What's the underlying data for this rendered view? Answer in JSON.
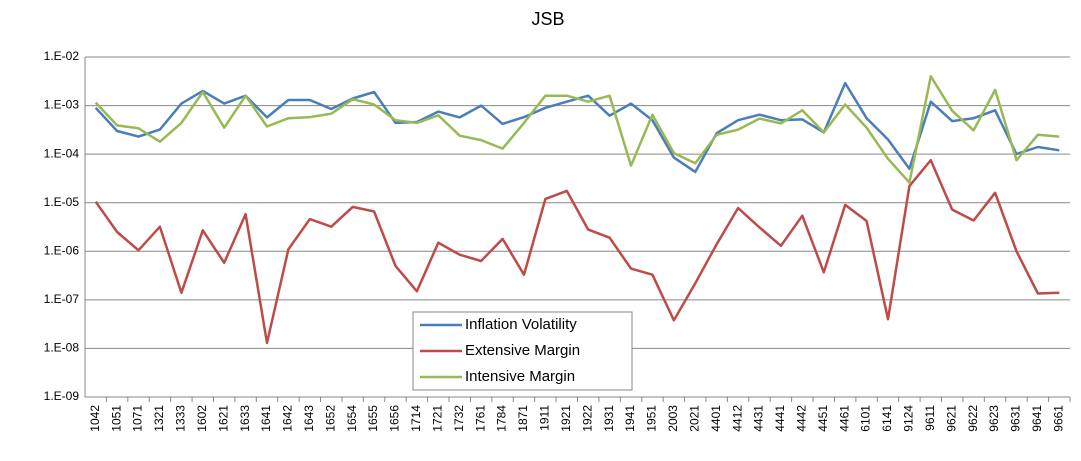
{
  "chart_data": {
    "type": "line",
    "title": "JSB",
    "log_scale": true,
    "grid": true,
    "categories": [
      "1042",
      "1051",
      "1071",
      "1321",
      "1333",
      "1602",
      "1621",
      "1633",
      "1641",
      "1642",
      "1643",
      "1652",
      "1654",
      "1655",
      "1656",
      "1714",
      "1721",
      "1732",
      "1761",
      "1784",
      "1871",
      "1911",
      "1921",
      "1922",
      "1931",
      "1941",
      "1951",
      "2003",
      "2021",
      "4401",
      "4412",
      "4431",
      "4441",
      "4442",
      "4451",
      "4461",
      "6101",
      "6141",
      "9124",
      "9611",
      "9621",
      "9622",
      "9623",
      "9631",
      "9641",
      "9661"
    ],
    "ylim": [
      1e-09,
      0.01
    ],
    "yticks": [
      {
        "value": 0.01,
        "label": "1.E-02"
      },
      {
        "value": 0.001,
        "label": "1.E-03"
      },
      {
        "value": 0.0001,
        "label": "1.E-04"
      },
      {
        "value": 1e-05,
        "label": "1.E-05"
      },
      {
        "value": 1e-06,
        "label": "1.E-06"
      },
      {
        "value": 1e-07,
        "label": "1.E-07"
      },
      {
        "value": 1e-08,
        "label": "1.E-08"
      },
      {
        "value": 1e-09,
        "label": "1.E-09"
      }
    ],
    "series": [
      {
        "name": "Inflation Volatility",
        "color": "#4a7ebb",
        "values": [
          0.0009,
          0.0003,
          0.00023,
          0.00032,
          0.0011,
          0.002,
          0.0011,
          0.0016,
          0.00057,
          0.0013,
          0.0013,
          0.00085,
          0.0014,
          0.0019,
          0.00044,
          0.00046,
          0.00075,
          0.00057,
          0.001,
          0.00042,
          0.00058,
          0.0009,
          0.0012,
          0.0016,
          0.00062,
          0.0011,
          0.0005,
          8.5e-05,
          4.3e-05,
          0.00027,
          0.0005,
          0.00065,
          0.0005,
          0.00052,
          0.00028,
          0.0029,
          0.00055,
          0.0002,
          5e-05,
          0.0012,
          0.00048,
          0.00055,
          0.0008,
          0.0001,
          0.00014,
          0.00012
        ]
      },
      {
        "name": "Extensive Margin",
        "color": "#be4b48",
        "values": [
          1.05e-05,
          2.5e-06,
          1.05e-06,
          3.2e-06,
          1.4e-07,
          2.7e-06,
          5.8e-07,
          5.8e-06,
          1.3e-08,
          1.1e-06,
          4.6e-06,
          3.2e-06,
          8.2e-06,
          6.6e-06,
          5e-07,
          1.5e-07,
          1.5e-06,
          8.5e-07,
          6.3e-07,
          1.8e-06,
          3.3e-07,
          1.2e-05,
          1.75e-05,
          2.8e-06,
          1.9e-06,
          4.4e-07,
          3.3e-07,
          3.8e-08,
          2.2e-07,
          1.4e-06,
          7.8e-06,
          3.1e-06,
          1.3e-06,
          5.4e-06,
          3.7e-07,
          9e-06,
          4.2e-06,
          4e-08,
          2.2e-05,
          7.5e-05,
          7.2e-06,
          4.3e-06,
          1.6e-05,
          1e-06,
          1.35e-07,
          1.4e-07
        ]
      },
      {
        "name": "Intensive Margin",
        "color": "#98b954",
        "values": [
          0.00115,
          0.00039,
          0.00034,
          0.00018,
          0.00044,
          0.0019,
          0.00035,
          0.0016,
          0.00037,
          0.00055,
          0.00058,
          0.00068,
          0.00135,
          0.00105,
          0.0005,
          0.00044,
          0.00063,
          0.00024,
          0.000195,
          0.00013,
          0.00044,
          0.0016,
          0.0016,
          0.0012,
          0.0016,
          5.8e-05,
          0.00065,
          0.000105,
          6.5e-05,
          0.00025,
          0.00032,
          0.00054,
          0.00043,
          0.0008,
          0.00028,
          0.00105,
          0.00035,
          8e-05,
          2.6e-05,
          0.004,
          0.00078,
          0.00031,
          0.0021,
          7.5e-05,
          0.00025,
          0.00023
        ]
      }
    ]
  }
}
